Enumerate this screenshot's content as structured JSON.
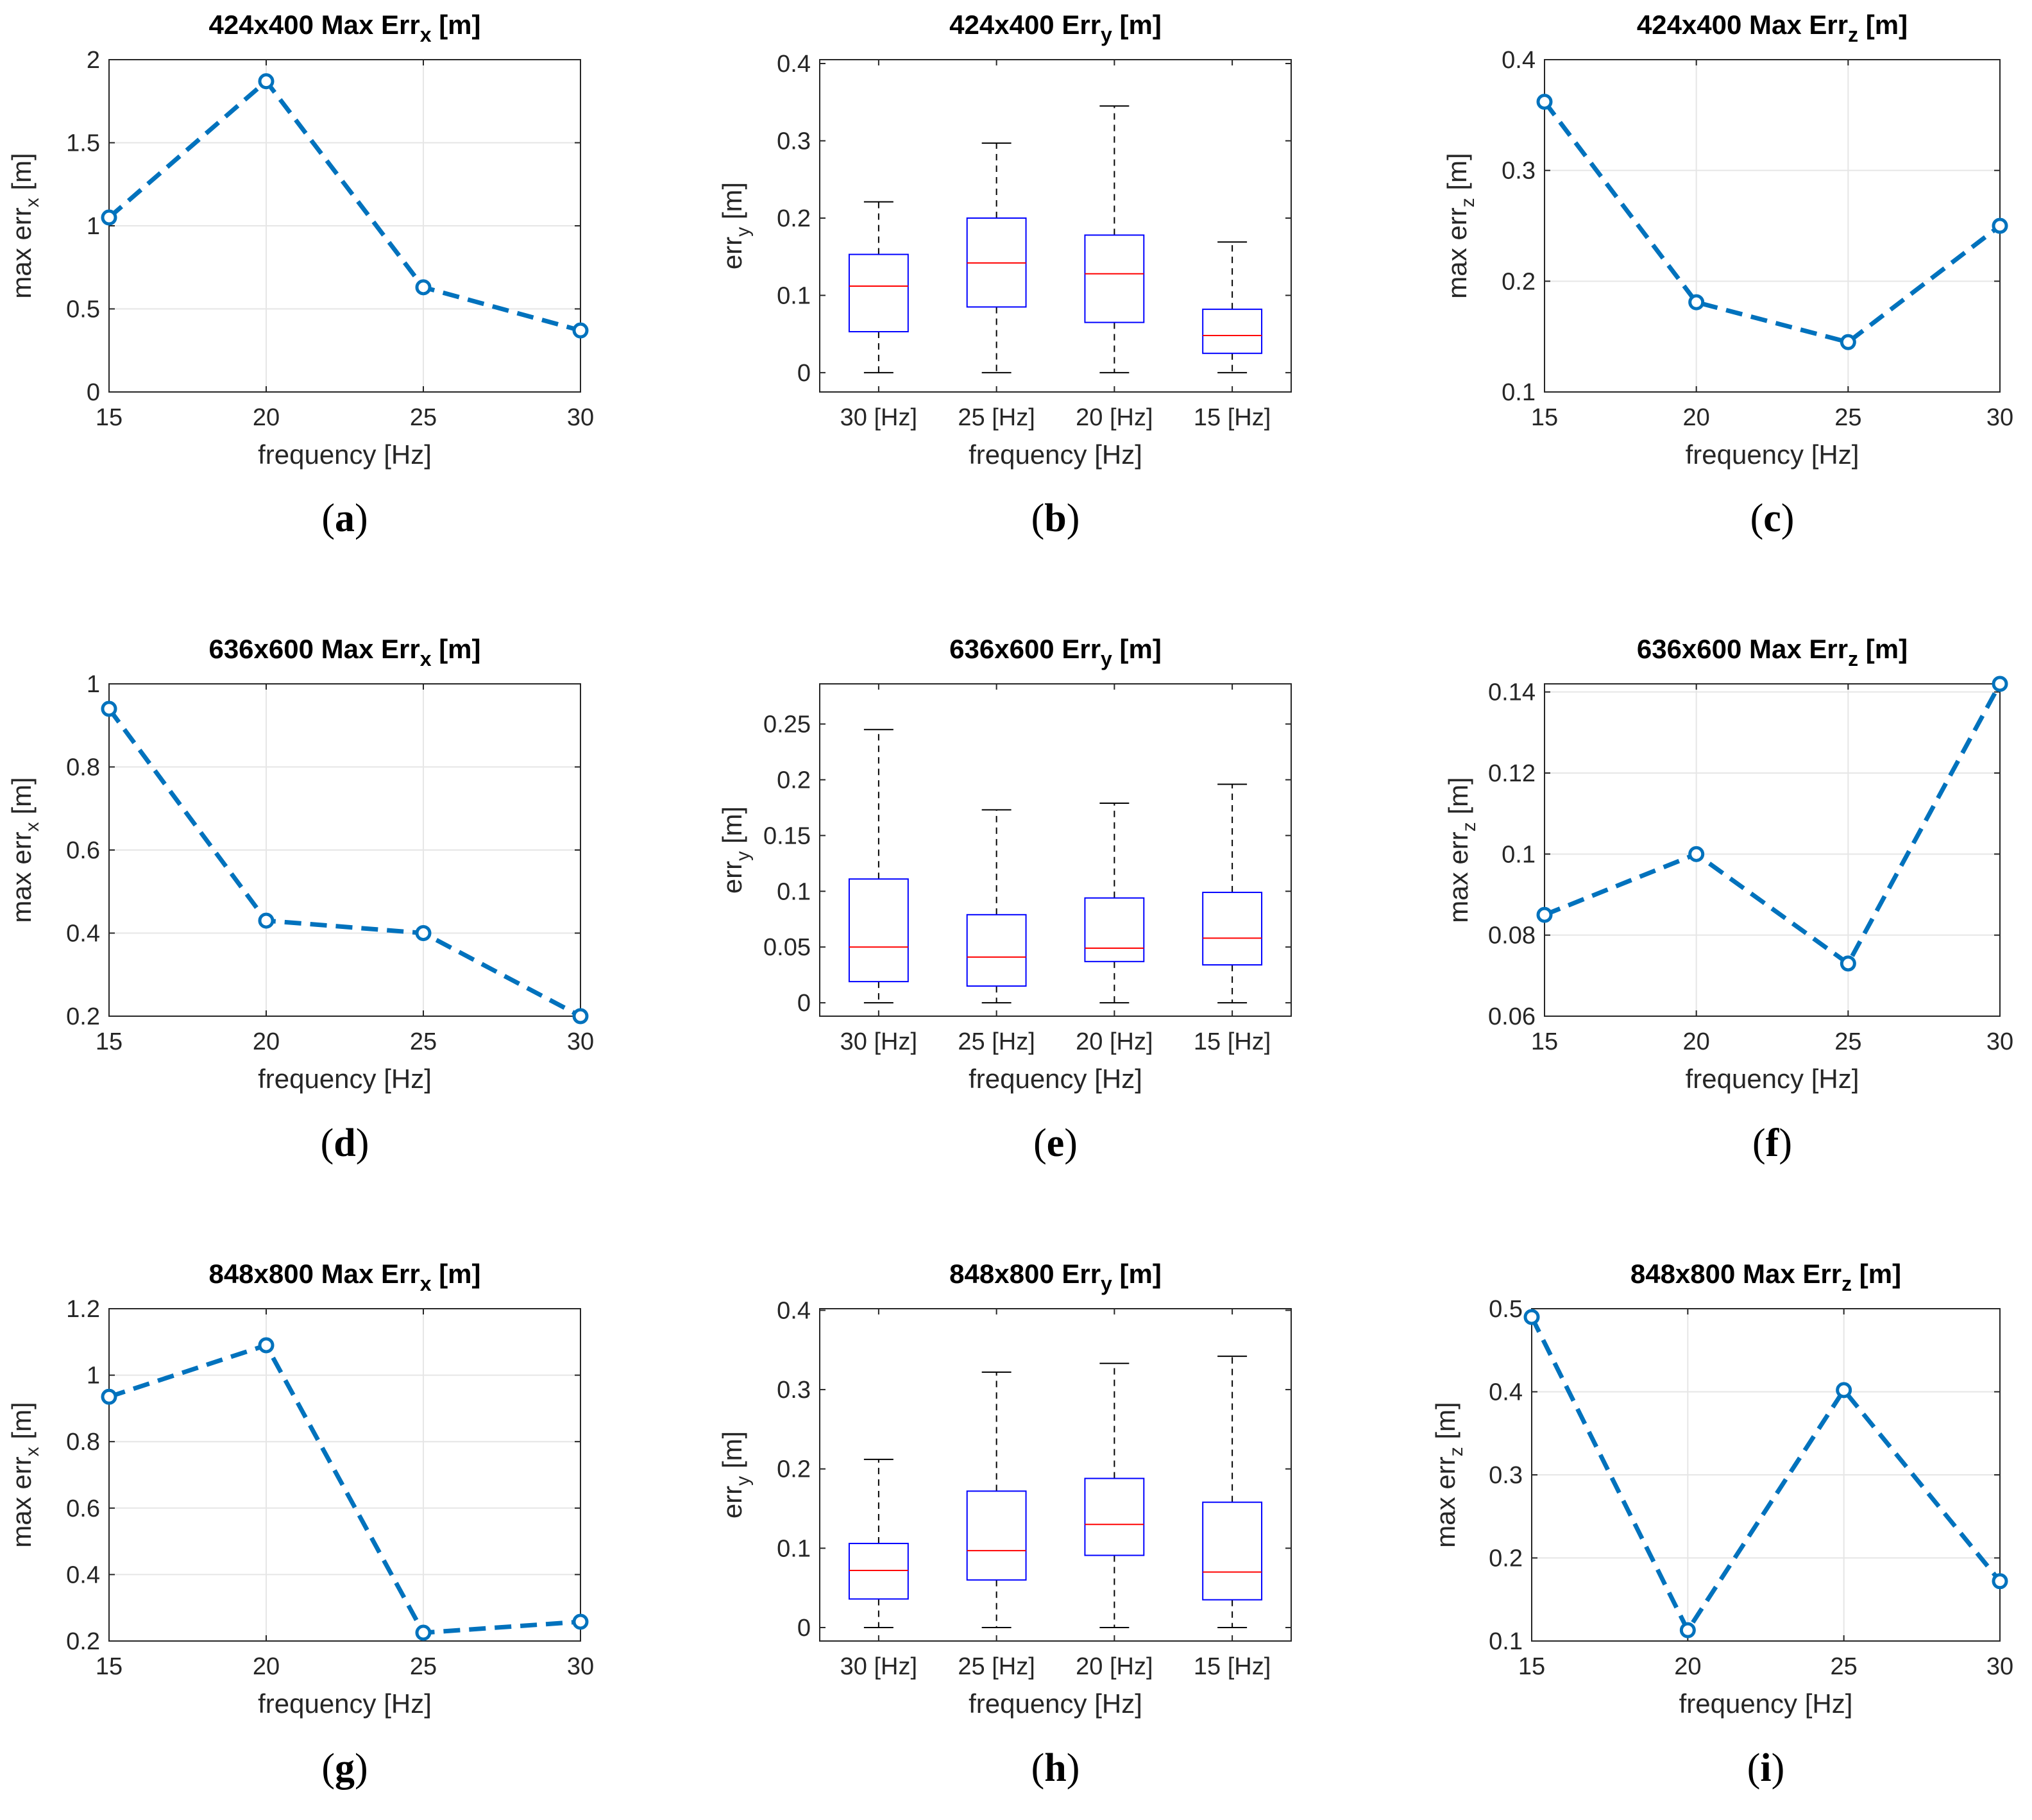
{
  "colors": {
    "line": "#0072BD",
    "box": "#0000FF",
    "median": "#FF0000",
    "whisker": "#000000",
    "grid": "#e6e6e6",
    "axis": "#262626"
  },
  "chart_data": [
    {
      "id": "a",
      "type": "line",
      "title": {
        "main": "424x400 Max Err",
        "sub": "x",
        "tail": " [m]"
      },
      "xlabel": "frequency [Hz]",
      "ylabel": {
        "main": "max err",
        "sub": "x",
        "tail": " [m]"
      },
      "x": [
        15,
        20,
        25,
        30
      ],
      "values": [
        1.05,
        1.87,
        0.63,
        0.37
      ],
      "xlim": [
        15,
        30
      ],
      "ylim": [
        0,
        2
      ],
      "xticks": [
        15,
        20,
        25,
        30
      ],
      "yticks": [
        0,
        0.5,
        1,
        1.5,
        2
      ],
      "xtick_labels": [
        "15",
        "20",
        "25",
        "30"
      ],
      "ytick_labels": [
        "0",
        "0.5",
        "1",
        "1.5",
        "2"
      ],
      "caption": "a",
      "grid": true
    },
    {
      "id": "b",
      "type": "box",
      "title": {
        "main": "424x400 Err",
        "sub": "y",
        "tail": " [m]"
      },
      "xlabel": "frequency [Hz]",
      "ylabel": {
        "main": "err",
        "sub": "y",
        "tail": " [m]"
      },
      "categories": [
        "30 [Hz]",
        "25 [Hz]",
        "20 [Hz]",
        "15 [Hz]"
      ],
      "boxes": [
        {
          "min": 0,
          "q1": 0.053,
          "median": 0.112,
          "q3": 0.153,
          "max": 0.221
        },
        {
          "min": 0,
          "q1": 0.085,
          "median": 0.142,
          "q3": 0.2,
          "max": 0.297
        },
        {
          "min": 0,
          "q1": 0.065,
          "median": 0.128,
          "q3": 0.178,
          "max": 0.345
        },
        {
          "min": 0,
          "q1": 0.025,
          "median": 0.048,
          "q3": 0.082,
          "max": 0.169
        }
      ],
      "ylim": [
        -0.025,
        0.405
      ],
      "yticks": [
        0,
        0.1,
        0.2,
        0.3,
        0.4
      ],
      "ytick_labels": [
        "0",
        "0.1",
        "0.2",
        "0.3",
        "0.4"
      ],
      "caption": "b",
      "grid": false
    },
    {
      "id": "c",
      "type": "line",
      "title": {
        "main": "424x400 Max Err",
        "sub": "z",
        "tail": " [m]"
      },
      "xlabel": "frequency [Hz]",
      "ylabel": {
        "main": "max err",
        "sub": "z",
        "tail": " [m]"
      },
      "x": [
        15,
        20,
        25,
        30
      ],
      "values": [
        0.362,
        0.181,
        0.145,
        0.25
      ],
      "xlim": [
        15,
        30
      ],
      "ylim": [
        0.1,
        0.4
      ],
      "xticks": [
        15,
        20,
        25,
        30
      ],
      "yticks": [
        0.1,
        0.2,
        0.3,
        0.4
      ],
      "xtick_labels": [
        "15",
        "20",
        "25",
        "30"
      ],
      "ytick_labels": [
        "0.1",
        "0.2",
        "0.3",
        "0.4"
      ],
      "caption": "c",
      "grid": true
    },
    {
      "id": "d",
      "type": "line",
      "title": {
        "main": "636x600 Max Err",
        "sub": "x",
        "tail": " [m]"
      },
      "xlabel": "frequency [Hz]",
      "ylabel": {
        "main": "max err",
        "sub": "x",
        "tail": " [m]"
      },
      "x": [
        15,
        20,
        25,
        30
      ],
      "values": [
        0.94,
        0.43,
        0.4,
        0.2
      ],
      "xlim": [
        15,
        30
      ],
      "ylim": [
        0.2,
        1
      ],
      "xticks": [
        15,
        20,
        25,
        30
      ],
      "yticks": [
        0.2,
        0.4,
        0.6,
        0.8,
        1
      ],
      "xtick_labels": [
        "15",
        "20",
        "25",
        "30"
      ],
      "ytick_labels": [
        "0.2",
        "0.4",
        "0.6",
        "0.8",
        "1"
      ],
      "caption": "d",
      "grid": true
    },
    {
      "id": "e",
      "type": "box",
      "title": {
        "main": "636x600 Err",
        "sub": "y",
        "tail": " [m]"
      },
      "xlabel": "frequency [Hz]",
      "ylabel": {
        "main": "err",
        "sub": "y",
        "tail": " [m]"
      },
      "categories": [
        "30 [Hz]",
        "25 [Hz]",
        "20 [Hz]",
        "15 [Hz]"
      ],
      "boxes": [
        {
          "min": 0,
          "q1": 0.019,
          "median": 0.05,
          "q3": 0.111,
          "max": 0.245
        },
        {
          "min": 0,
          "q1": 0.015,
          "median": 0.041,
          "q3": 0.079,
          "max": 0.173
        },
        {
          "min": 0,
          "q1": 0.037,
          "median": 0.049,
          "q3": 0.094,
          "max": 0.179
        },
        {
          "min": 0,
          "q1": 0.034,
          "median": 0.058,
          "q3": 0.099,
          "max": 0.196
        }
      ],
      "ylim": [
        -0.012,
        0.286
      ],
      "yticks": [
        0,
        0.05,
        0.1,
        0.15,
        0.2,
        0.25
      ],
      "ytick_labels": [
        "0",
        "0.05",
        "0.1",
        "0.15",
        "0.2",
        "0.25"
      ],
      "caption": "e",
      "grid": false
    },
    {
      "id": "f",
      "type": "line",
      "title": {
        "main": "636x600 Max Err",
        "sub": "z",
        "tail": " [m]"
      },
      "xlabel": "frequency [Hz]",
      "ylabel": {
        "main": "max err",
        "sub": "z",
        "tail": " [m]"
      },
      "x": [
        15,
        20,
        25,
        30
      ],
      "values": [
        0.085,
        0.1,
        0.073,
        0.142
      ],
      "xlim": [
        15,
        30
      ],
      "ylim": [
        0.06,
        0.142
      ],
      "xticks": [
        15,
        20,
        25,
        30
      ],
      "yticks": [
        0.06,
        0.08,
        0.1,
        0.12,
        0.14
      ],
      "xtick_labels": [
        "15",
        "20",
        "25",
        "30"
      ],
      "ytick_labels": [
        "0.06",
        "0.08",
        "0.1",
        "0.12",
        "0.14"
      ],
      "caption": "f",
      "grid": true
    },
    {
      "id": "g",
      "type": "line",
      "title": {
        "main": "848x800 Max Err",
        "sub": "x",
        "tail": " [m]"
      },
      "xlabel": "frequency [Hz]",
      "ylabel": {
        "main": "max err",
        "sub": "x",
        "tail": " [m]"
      },
      "x": [
        15,
        20,
        25,
        30
      ],
      "values": [
        0.935,
        1.09,
        0.225,
        0.258
      ],
      "xlim": [
        15,
        30
      ],
      "ylim": [
        0.2,
        1.2
      ],
      "xticks": [
        15,
        20,
        25,
        30
      ],
      "yticks": [
        0.2,
        0.4,
        0.6,
        0.8,
        1,
        1.2
      ],
      "xtick_labels": [
        "15",
        "20",
        "25",
        "30"
      ],
      "ytick_labels": [
        "0.2",
        "0.4",
        "0.6",
        "0.8",
        "1",
        "1.2"
      ],
      "caption": "g",
      "grid": true
    },
    {
      "id": "h",
      "type": "box",
      "title": {
        "main": "848x800 Err",
        "sub": "y",
        "tail": " [m]"
      },
      "xlabel": "frequency [Hz]",
      "ylabel": {
        "main": "err",
        "sub": "y",
        "tail": " [m]"
      },
      "categories": [
        "30 [Hz]",
        "25 [Hz]",
        "20 [Hz]",
        "15 [Hz]"
      ],
      "boxes": [
        {
          "min": 0,
          "q1": 0.036,
          "median": 0.072,
          "q3": 0.106,
          "max": 0.212
        },
        {
          "min": 0,
          "q1": 0.06,
          "median": 0.097,
          "q3": 0.172,
          "max": 0.322
        },
        {
          "min": 0,
          "q1": 0.091,
          "median": 0.13,
          "q3": 0.188,
          "max": 0.333
        },
        {
          "min": 0,
          "q1": 0.035,
          "median": 0.07,
          "q3": 0.158,
          "max": 0.342
        }
      ],
      "ylim": [
        -0.017,
        0.402
      ],
      "yticks": [
        0,
        0.1,
        0.2,
        0.3,
        0.4
      ],
      "ytick_labels": [
        "0",
        "0.1",
        "0.2",
        "0.3",
        "0.4"
      ],
      "caption": "h",
      "grid": false
    },
    {
      "id": "i",
      "type": "line",
      "title": {
        "main": "848x800 Max Err",
        "sub": "z",
        "tail": " [m]"
      },
      "xlabel": "frequency [Hz]",
      "ylabel": {
        "main": "max err",
        "sub": "z",
        "tail": " [m]"
      },
      "x": [
        15,
        20,
        25,
        30
      ],
      "values": [
        0.49,
        0.113,
        0.402,
        0.172
      ],
      "xlim": [
        15,
        30
      ],
      "ylim": [
        0.1,
        0.5
      ],
      "xticks": [
        15,
        20,
        25,
        30
      ],
      "yticks": [
        0.1,
        0.2,
        0.3,
        0.4,
        0.5
      ],
      "xtick_labels": [
        "15",
        "20",
        "25",
        "30"
      ],
      "ytick_labels": [
        "0.1",
        "0.2",
        "0.3",
        "0.4",
        "0.5"
      ],
      "caption": "i",
      "grid": true
    }
  ]
}
